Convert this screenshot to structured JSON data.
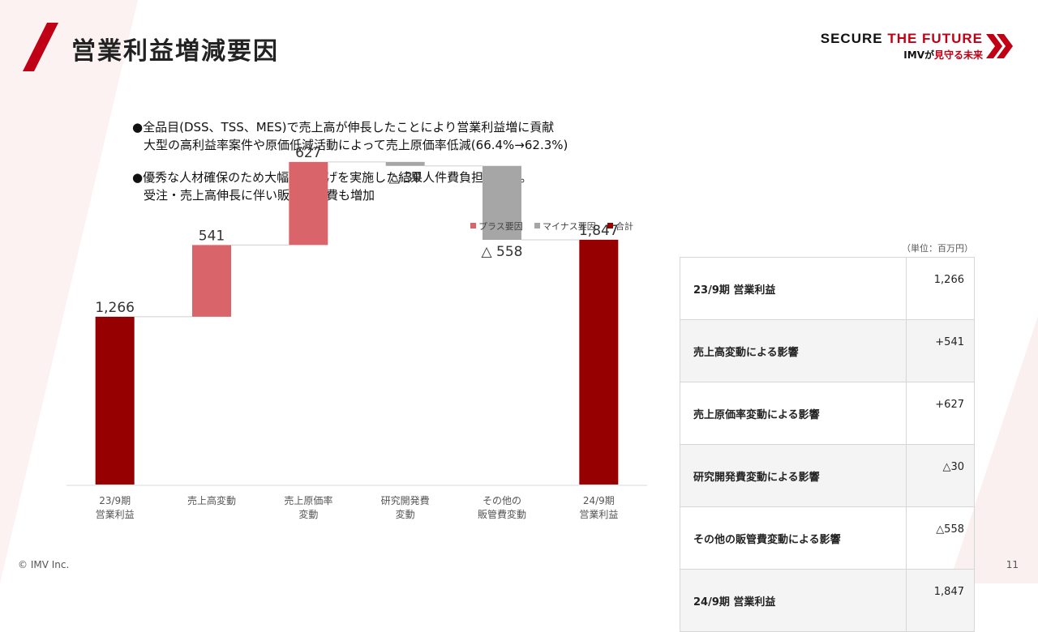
{
  "header": {
    "title": "営業利益増減要因",
    "logo_line1_a": "SECURE ",
    "logo_line1_b": "THE FUTURE",
    "logo_line2_a": "IMVが",
    "logo_line2_b": "見守る未来"
  },
  "bullets": [
    {
      "line1": "●全品目(DSS、TSS、MES)で売上高が伸長したことにより営業利益増に貢献",
      "line2": "大型の高利益率案件や原価低減活動によって売上原価率低減(66.4%→62.3%)"
    },
    {
      "line1": "●優秀な人材確保のため大幅な賃上げを実施した結果人件費負担が増加。",
      "line2": "受注・売上高伸長に伴い販売管理費も増加"
    }
  ],
  "chart_data": {
    "type": "bar",
    "subtype": "waterfall",
    "categories": [
      [
        "23/9期",
        "営業利益"
      ],
      [
        "売上高変動"
      ],
      [
        "売上原価率",
        "変動"
      ],
      [
        "研究開発費",
        "変動"
      ],
      [
        "その他の",
        "販管費変動"
      ],
      [
        "24/9期",
        "営業利益"
      ]
    ],
    "values": [
      1266,
      541,
      627,
      -30,
      -558,
      1847
    ],
    "kinds": [
      "total",
      "plus",
      "plus",
      "minus",
      "minus",
      "total"
    ],
    "data_labels": [
      "1,266",
      "541",
      "627",
      "△ 30",
      "△ 558",
      "1,847"
    ],
    "legend": [
      {
        "key": "plus",
        "label": "プラス要因",
        "color": "#d9646a"
      },
      {
        "key": "minus",
        "label": "マイナス要因",
        "color": "#a6a6a6"
      },
      {
        "key": "total",
        "label": "合計",
        "color": "#960000"
      }
    ],
    "ylim": [
      0,
      2433
    ],
    "grid": false,
    "legend_position": "top-right"
  },
  "table": {
    "unit": "（単位：百万円）",
    "rows": [
      {
        "label": "23/9期 営業利益",
        "value": "1,266"
      },
      {
        "label": "売上高変動による影響",
        "value": "+541"
      },
      {
        "label": "売上原価率変動による影響",
        "value": "+627"
      },
      {
        "label": "研究開発費変動による影響",
        "value": "△30"
      },
      {
        "label": "その他の販管費変動による影響",
        "value": "△558"
      },
      {
        "label": "24/9期 営業利益",
        "value": "1,847"
      }
    ]
  },
  "footer": {
    "copyright": "© IMV Inc.",
    "page": "11"
  }
}
